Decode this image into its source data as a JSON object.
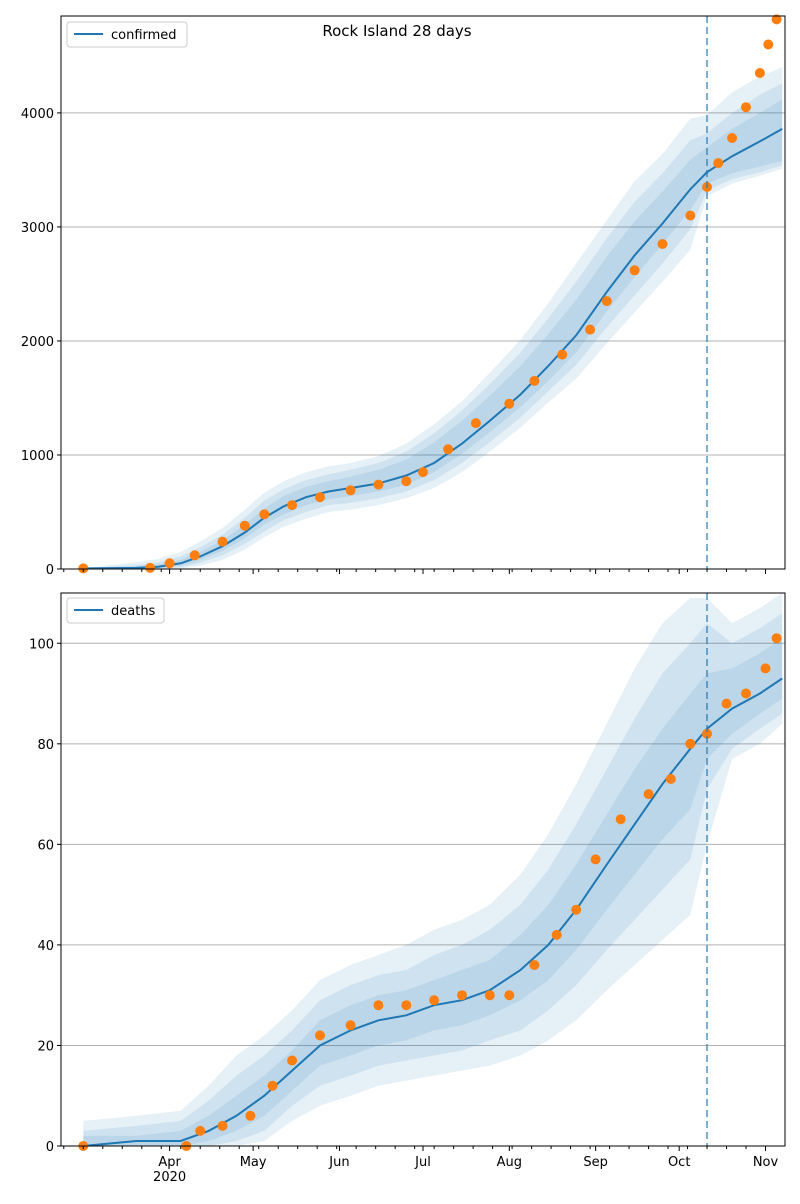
{
  "figure": {
    "title": "Rock Island 28 days"
  },
  "colors": {
    "model": "#1f77b4",
    "observed": "#ff7f0e",
    "grid": "#b0b0b0",
    "band": "#1f77b4"
  },
  "chart_data": [
    {
      "type": "line",
      "panel": "top",
      "title": "Rock Island 28 days",
      "legend": {
        "label": "confirmed",
        "placement": "top-left"
      },
      "ylim": [
        0,
        4850
      ],
      "yticks": [
        0,
        1000,
        2000,
        3000,
        4000
      ],
      "grid": "horizontal",
      "forecast_start": "2020-10-11",
      "model_series": {
        "name": "confirmed",
        "x": [
          "2020-03-01",
          "2020-03-20",
          "2020-03-28",
          "2020-04-05",
          "2020-04-12",
          "2020-04-20",
          "2020-04-28",
          "2020-05-05",
          "2020-05-12",
          "2020-05-20",
          "2020-05-28",
          "2020-06-05",
          "2020-06-15",
          "2020-06-25",
          "2020-07-05",
          "2020-07-15",
          "2020-07-25",
          "2020-08-05",
          "2020-08-15",
          "2020-08-25",
          "2020-09-05",
          "2020-09-15",
          "2020-09-25",
          "2020-10-05",
          "2020-10-11",
          "2020-10-20",
          "2020-10-30",
          "2020-11-07"
        ],
        "y": [
          5,
          10,
          20,
          50,
          110,
          200,
          320,
          450,
          550,
          630,
          680,
          710,
          750,
          820,
          930,
          1100,
          1300,
          1530,
          1780,
          2050,
          2430,
          2750,
          3030,
          3330,
          3480,
          3620,
          3750,
          3860
        ]
      },
      "observed_series": {
        "name": "observed",
        "x": [
          "2020-03-01",
          "2020-03-25",
          "2020-04-01",
          "2020-04-10",
          "2020-04-20",
          "2020-04-28",
          "2020-05-05",
          "2020-05-15",
          "2020-05-25",
          "2020-06-05",
          "2020-06-15",
          "2020-06-25",
          "2020-07-01",
          "2020-07-10",
          "2020-07-20",
          "2020-08-01",
          "2020-08-10",
          "2020-08-20",
          "2020-08-30",
          "2020-09-05",
          "2020-09-15",
          "2020-09-25",
          "2020-10-05",
          "2020-10-11",
          "2020-10-15",
          "2020-10-20",
          "2020-10-25",
          "2020-10-30",
          "2020-11-02",
          "2020-11-05"
        ],
        "y": [
          5,
          10,
          50,
          120,
          240,
          380,
          480,
          560,
          630,
          690,
          740,
          770,
          850,
          1050,
          1280,
          1450,
          1650,
          1880,
          2100,
          2350,
          2620,
          2850,
          3100,
          3350,
          3560,
          3780,
          4050,
          4350,
          4600,
          4820
        ]
      },
      "band_upper": [
        [
          5,
          20,
          40,
          80,
          150,
          250,
          390,
          530,
          640,
          720,
          770,
          810,
          870,
          960,
          1110,
          1300,
          1520,
          1780,
          2060,
          2360,
          2740,
          3050,
          3310,
          3590,
          3700,
          3860,
          4000,
          4120
        ],
        [
          5,
          35,
          60,
          110,
          190,
          300,
          450,
          600,
          700,
          780,
          830,
          870,
          930,
          1030,
          1190,
          1390,
          1620,
          1900,
          2200,
          2520,
          2900,
          3220,
          3470,
          3760,
          3820,
          4000,
          4160,
          4260
        ],
        [
          5,
          60,
          90,
          150,
          240,
          360,
          520,
          670,
          770,
          850,
          900,
          930,
          990,
          1100,
          1270,
          1470,
          1720,
          2010,
          2330,
          2680,
          3060,
          3400,
          3640,
          3950,
          3980,
          4180,
          4320,
          4400
        ]
      ],
      "band_lower": [
        [
          0,
          5,
          10,
          30,
          80,
          160,
          270,
          390,
          480,
          560,
          610,
          640,
          680,
          740,
          850,
          1010,
          1200,
          1420,
          1650,
          1900,
          2260,
          2560,
          2850,
          3150,
          3380,
          3470,
          3530,
          3580
        ],
        [
          0,
          2,
          5,
          15,
          55,
          120,
          220,
          330,
          430,
          500,
          560,
          580,
          620,
          680,
          780,
          930,
          1110,
          1330,
          1560,
          1790,
          2120,
          2400,
          2680,
          2980,
          3320,
          3420,
          3480,
          3540
        ],
        [
          0,
          0,
          2,
          5,
          30,
          80,
          170,
          280,
          370,
          440,
          500,
          520,
          560,
          620,
          710,
          850,
          1030,
          1240,
          1460,
          1670,
          1980,
          2250,
          2520,
          2800,
          3270,
          3380,
          3450,
          3510
        ]
      ]
    },
    {
      "type": "line",
      "panel": "bottom",
      "legend": {
        "label": "deaths",
        "placement": "top-left"
      },
      "ylim": [
        0,
        110
      ],
      "yticks": [
        0,
        20,
        40,
        60,
        80,
        100
      ],
      "xticks": [
        "Apr\n2020",
        "May",
        "Jun",
        "Jul",
        "Aug",
        "Sep",
        "Oct",
        "Nov"
      ],
      "xtick_dates": [
        "2020-04-01",
        "2020-05-01",
        "2020-06-01",
        "2020-07-01",
        "2020-08-01",
        "2020-09-01",
        "2020-10-01",
        "2020-11-01"
      ],
      "grid": "horizontal",
      "forecast_start": "2020-10-11",
      "model_series": {
        "name": "deaths",
        "x": [
          "2020-03-01",
          "2020-03-20",
          "2020-04-05",
          "2020-04-15",
          "2020-04-25",
          "2020-05-05",
          "2020-05-15",
          "2020-05-25",
          "2020-06-05",
          "2020-06-15",
          "2020-06-25",
          "2020-07-05",
          "2020-07-15",
          "2020-07-25",
          "2020-08-05",
          "2020-08-15",
          "2020-08-25",
          "2020-09-05",
          "2020-09-15",
          "2020-09-25",
          "2020-10-05",
          "2020-10-11",
          "2020-10-20",
          "2020-10-30",
          "2020-11-07"
        ],
        "y": [
          0,
          1,
          1,
          3,
          6,
          10,
          15,
          20,
          23,
          25,
          26,
          28,
          29,
          31,
          35,
          40,
          47,
          56,
          64,
          72,
          79,
          83,
          87,
          90,
          93
        ]
      },
      "observed_series": {
        "name": "observed",
        "x": [
          "2020-03-01",
          "2020-04-07",
          "2020-04-12",
          "2020-04-20",
          "2020-04-30",
          "2020-05-08",
          "2020-05-15",
          "2020-05-25",
          "2020-06-05",
          "2020-06-15",
          "2020-06-25",
          "2020-07-05",
          "2020-07-15",
          "2020-07-25",
          "2020-08-01",
          "2020-08-10",
          "2020-08-18",
          "2020-08-25",
          "2020-09-01",
          "2020-09-10",
          "2020-09-20",
          "2020-09-28",
          "2020-10-05",
          "2020-10-11",
          "2020-10-18",
          "2020-10-25",
          "2020-11-01",
          "2020-11-05"
        ],
        "y": [
          0,
          0,
          3,
          4,
          6,
          12,
          17,
          22,
          24,
          28,
          28,
          29,
          30,
          30,
          30,
          36,
          42,
          47,
          57,
          65,
          70,
          73,
          80,
          82,
          88,
          90,
          95,
          101
        ]
      },
      "band_upper": [
        [
          2,
          2,
          3,
          6,
          10,
          14,
          19,
          25,
          28,
          30,
          31,
          33,
          35,
          37,
          42,
          48,
          56,
          66,
          75,
          83,
          90,
          94,
          95,
          98,
          101
        ],
        [
          3,
          4,
          5,
          9,
          14,
          18,
          23,
          29,
          32,
          34,
          35,
          38,
          40,
          43,
          48,
          55,
          64,
          75,
          85,
          94,
          100,
          104,
          100,
          103,
          106
        ],
        [
          5,
          6,
          7,
          12,
          18,
          22,
          27,
          33,
          36,
          38,
          40,
          43,
          45,
          48,
          54,
          62,
          72,
          84,
          95,
          104,
          109,
          109,
          104,
          107,
          110
        ]
      ],
      "band_lower": [
        [
          0,
          0,
          0,
          1,
          3,
          6,
          11,
          16,
          18,
          20,
          21,
          23,
          24,
          26,
          29,
          33,
          39,
          47,
          54,
          61,
          67,
          77,
          82,
          86,
          89
        ],
        [
          0,
          0,
          0,
          0,
          1,
          3,
          8,
          12,
          14,
          16,
          17,
          18,
          19,
          21,
          23,
          27,
          32,
          39,
          45,
          51,
          57,
          71,
          79,
          83,
          86
        ],
        [
          0,
          0,
          0,
          0,
          0,
          1,
          5,
          8,
          10,
          12,
          13,
          14,
          15,
          16,
          18,
          21,
          25,
          31,
          36,
          41,
          46,
          60,
          77,
          80,
          84
        ]
      ]
    }
  ]
}
